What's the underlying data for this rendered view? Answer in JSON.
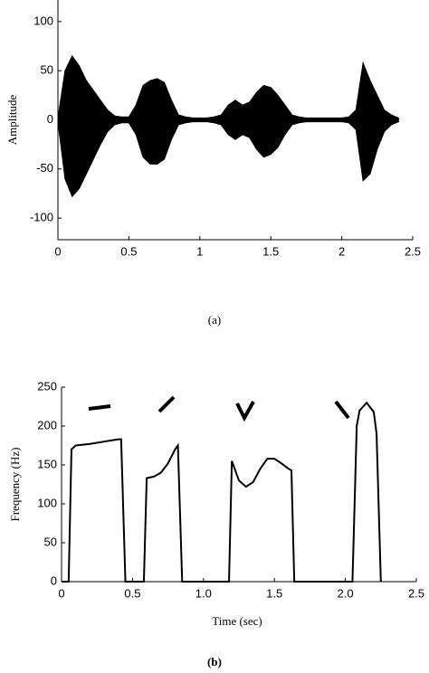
{
  "chart_data": [
    {
      "type": "area",
      "ylabel": "Amplitude",
      "caption": "(a)",
      "x": [
        0,
        0.05,
        0.1,
        0.15,
        0.2,
        0.25,
        0.3,
        0.35,
        0.4,
        0.45,
        0.5,
        0.55,
        0.6,
        0.65,
        0.7,
        0.75,
        0.8,
        0.85,
        0.9,
        0.95,
        1.0,
        1.05,
        1.1,
        1.15,
        1.2,
        1.25,
        1.3,
        1.35,
        1.4,
        1.45,
        1.5,
        1.55,
        1.6,
        1.65,
        1.7,
        1.75,
        1.8,
        1.85,
        1.9,
        1.95,
        2.0,
        2.05,
        2.1,
        2.15,
        2.2,
        2.25,
        2.3,
        2.35,
        2.4
      ],
      "series": [
        {
          "color": "#000000",
          "values": [
            2,
            50,
            65,
            55,
            40,
            30,
            20,
            10,
            4,
            3,
            3,
            15,
            35,
            40,
            42,
            38,
            20,
            5,
            3,
            2,
            2,
            2,
            3,
            5,
            15,
            20,
            15,
            18,
            28,
            35,
            33,
            25,
            15,
            5,
            3,
            2,
            2,
            2,
            2,
            2,
            2,
            3,
            10,
            58,
            40,
            25,
            10,
            5,
            2
          ]
        },
        {
          "color": "#000000",
          "values": [
            -2,
            -60,
            -78,
            -70,
            -55,
            -40,
            -25,
            -12,
            -5,
            -3,
            -3,
            -15,
            -38,
            -45,
            -45,
            -40,
            -20,
            -5,
            -3,
            -2,
            -2,
            -2,
            -3,
            -5,
            -15,
            -20,
            -15,
            -18,
            -30,
            -38,
            -35,
            -28,
            -15,
            -5,
            -3,
            -2,
            -2,
            -2,
            -2,
            -2,
            -2,
            -3,
            -10,
            -62,
            -55,
            -30,
            -12,
            -5,
            -2
          ]
        }
      ],
      "xlim": [
        0,
        2.5
      ],
      "xticks": [
        0,
        0.5,
        1,
        1.5,
        2,
        2.5
      ],
      "ylim": [
        -122,
        122
      ],
      "yticks": [
        -100,
        -50,
        0,
        50,
        100
      ]
    },
    {
      "type": "line",
      "ylabel": "Frequency (Hz)",
      "xlabel": "Time (sec)",
      "caption": "(b)",
      "x": [
        0,
        0.05,
        0.07,
        0.1,
        0.2,
        0.3,
        0.4,
        0.42,
        0.45,
        0.58,
        0.6,
        0.65,
        0.7,
        0.75,
        0.8,
        0.82,
        0.85,
        1.18,
        1.2,
        1.25,
        1.3,
        1.35,
        1.4,
        1.45,
        1.5,
        1.55,
        1.6,
        1.62,
        1.64,
        2.05,
        2.08,
        2.1,
        2.15,
        2.2,
        2.22,
        2.25
      ],
      "series": [
        {
          "color": "#000000",
          "values": [
            0,
            0,
            170,
            175,
            177,
            180,
            183,
            183,
            0,
            0,
            133,
            135,
            140,
            152,
            170,
            175,
            0,
            0,
            155,
            130,
            122,
            128,
            145,
            158,
            158,
            152,
            145,
            143,
            0,
            0,
            200,
            220,
            230,
            218,
            190,
            0
          ]
        }
      ],
      "xlim": [
        0,
        2.5
      ],
      "xticks": [
        0,
        0.5,
        {
          "value": 1,
          "label": "1.0"
        },
        1.5,
        {
          "value": 2,
          "label": "2.0"
        },
        2.5
      ],
      "ylim": [
        0,
        250
      ],
      "yticks": [
        0,
        50,
        100,
        150,
        200,
        250
      ]
    }
  ]
}
